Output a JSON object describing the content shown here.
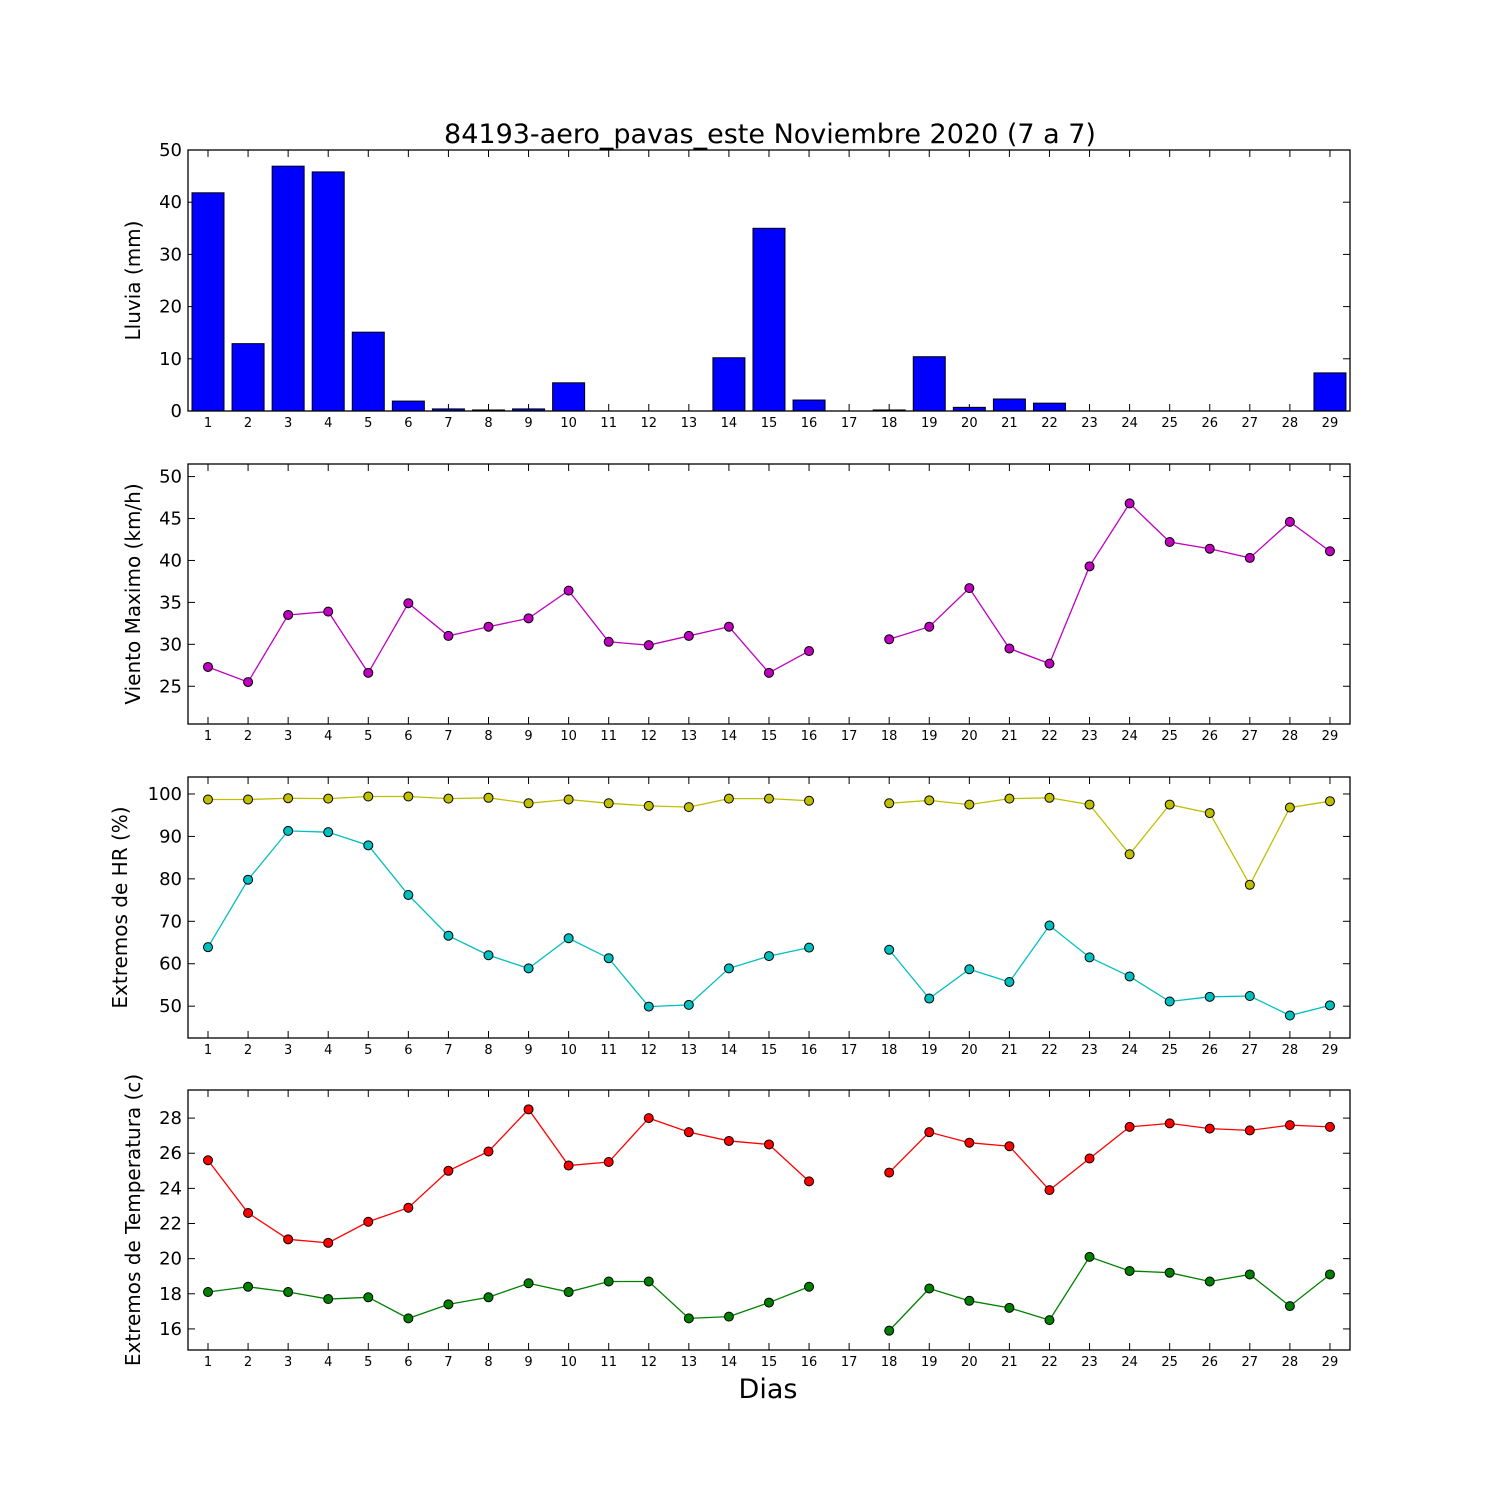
{
  "figure": {
    "title": "84193-aero_pavas_este Noviembre 2020  (7 a 7)",
    "xlabel": "Dias"
  },
  "chart_data": [
    {
      "id": "rain",
      "type": "bar",
      "ylabel": "Lluvia (mm)",
      "ylim": [
        0,
        50
      ],
      "yticks": [
        0,
        10,
        20,
        30,
        40,
        50
      ],
      "categories": [
        "1",
        "2",
        "3",
        "4",
        "5",
        "6",
        "7",
        "8",
        "9",
        "10",
        "11",
        "12",
        "13",
        "14",
        "15",
        "16",
        "17",
        "18",
        "19",
        "20",
        "21",
        "22",
        "23",
        "24",
        "25",
        "26",
        "27",
        "28",
        "29"
      ],
      "series": [
        {
          "color": "#0000ff",
          "values": [
            41.8,
            12.9,
            46.9,
            45.8,
            15.1,
            1.9,
            0.4,
            0.2,
            0.4,
            5.4,
            0,
            0,
            0,
            10.2,
            35.0,
            2.1,
            0,
            0.2,
            10.4,
            0.7,
            2.3,
            1.5,
            0,
            0,
            0,
            0,
            0,
            0,
            7.3
          ]
        }
      ]
    },
    {
      "id": "wind",
      "type": "line",
      "ylabel": "Viento Maximo (km/h)",
      "ylim": [
        20.5,
        51.5
      ],
      "yticks": [
        25,
        30,
        35,
        40,
        45,
        50
      ],
      "categories": [
        "1",
        "2",
        "3",
        "4",
        "5",
        "6",
        "7",
        "8",
        "9",
        "10",
        "11",
        "12",
        "13",
        "14",
        "15",
        "16",
        "17",
        "18",
        "19",
        "20",
        "21",
        "22",
        "23",
        "24",
        "25",
        "26",
        "27",
        "28",
        "29"
      ],
      "series": [
        {
          "color": "#bf00bf",
          "values": [
            27.3,
            25.5,
            33.5,
            33.9,
            26.6,
            34.9,
            31.0,
            32.1,
            33.1,
            36.4,
            30.3,
            29.9,
            31.0,
            32.1,
            26.6,
            29.2,
            null,
            30.6,
            32.1,
            36.7,
            29.5,
            27.7,
            39.3,
            46.8,
            42.2,
            41.4,
            40.3,
            44.6,
            41.1
          ]
        }
      ]
    },
    {
      "id": "hr",
      "type": "line",
      "ylabel": "Extremos de HR (%)",
      "ylim": [
        42.5,
        104
      ],
      "yticks": [
        50,
        60,
        70,
        80,
        90,
        100
      ],
      "categories": [
        "1",
        "2",
        "3",
        "4",
        "5",
        "6",
        "7",
        "8",
        "9",
        "10",
        "11",
        "12",
        "13",
        "14",
        "15",
        "16",
        "17",
        "18",
        "19",
        "20",
        "21",
        "22",
        "23",
        "24",
        "25",
        "26",
        "27",
        "28",
        "29"
      ],
      "series": [
        {
          "color": "#bfbf00",
          "values": [
            98.7,
            98.7,
            99.0,
            98.9,
            99.4,
            99.4,
            98.9,
            99.1,
            97.8,
            98.7,
            97.8,
            97.2,
            96.9,
            98.9,
            98.9,
            98.4,
            null,
            97.8,
            98.5,
            97.5,
            98.9,
            99.1,
            97.5,
            85.8,
            97.5,
            95.5,
            78.6,
            96.8,
            98.3
          ]
        },
        {
          "color": "#00bfbf",
          "values": [
            63.9,
            79.8,
            91.3,
            91.0,
            87.9,
            76.2,
            66.6,
            62.0,
            58.9,
            66.0,
            61.3,
            49.9,
            50.3,
            58.9,
            61.8,
            63.8,
            null,
            63.3,
            51.8,
            58.7,
            55.7,
            69.0,
            61.5,
            57.0,
            51.1,
            52.2,
            52.4,
            47.8,
            50.2
          ]
        }
      ]
    },
    {
      "id": "temp",
      "type": "line",
      "ylabel": "Extremos de Temperatura (c)",
      "ylim": [
        14.8,
        29.6
      ],
      "yticks": [
        16,
        18,
        20,
        22,
        24,
        26,
        28
      ],
      "categories": [
        "1",
        "2",
        "3",
        "4",
        "5",
        "6",
        "7",
        "8",
        "9",
        "10",
        "11",
        "12",
        "13",
        "14",
        "15",
        "16",
        "17",
        "18",
        "19",
        "20",
        "21",
        "22",
        "23",
        "24",
        "25",
        "26",
        "27",
        "28",
        "29"
      ],
      "series": [
        {
          "color": "#ff0000",
          "values": [
            25.6,
            22.6,
            21.1,
            20.9,
            22.1,
            22.9,
            25.0,
            26.1,
            28.5,
            25.3,
            25.5,
            28.0,
            27.2,
            26.7,
            26.5,
            24.4,
            null,
            24.9,
            27.2,
            26.6,
            26.4,
            23.9,
            25.7,
            27.5,
            27.7,
            27.4,
            27.3,
            27.6,
            27.5
          ]
        },
        {
          "color": "#008000",
          "values": [
            18.1,
            18.4,
            18.1,
            17.7,
            17.8,
            16.6,
            17.4,
            17.8,
            18.6,
            18.1,
            18.7,
            18.7,
            16.6,
            16.7,
            17.5,
            18.4,
            null,
            15.9,
            18.3,
            17.6,
            17.2,
            16.5,
            20.1,
            19.3,
            19.2,
            18.7,
            19.1,
            17.3,
            19.1
          ]
        }
      ]
    }
  ]
}
